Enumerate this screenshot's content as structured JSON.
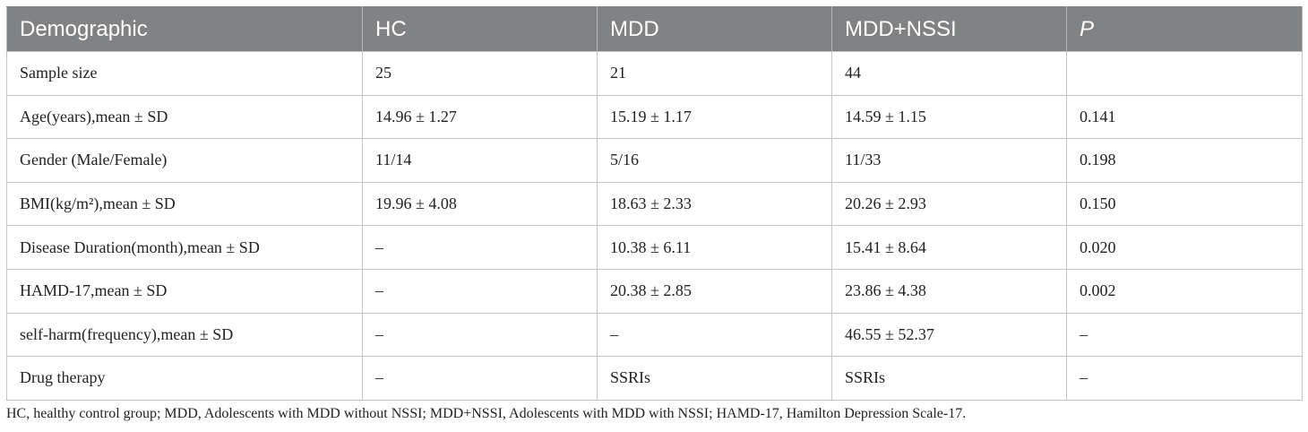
{
  "table": {
    "headers": [
      "Demographic",
      "HC",
      "MDD",
      "MDD+NSSI",
      "P"
    ],
    "rows": [
      [
        "Sample size",
        "25",
        "21",
        "44",
        ""
      ],
      [
        "Age(years),mean ± SD",
        "14.96 ± 1.27",
        "15.19 ± 1.17",
        "14.59 ± 1.15",
        "0.141"
      ],
      [
        "Gender (Male/Female)",
        "11/14",
        "5/16",
        "11/33",
        "0.198"
      ],
      [
        "BMI(kg/m²),mean ± SD",
        "19.96 ± 4.08",
        "18.63 ± 2.33",
        "20.26 ± 2.93",
        "0.150"
      ],
      [
        "Disease Duration(month),mean ± SD",
        "–",
        "10.38 ± 6.11",
        "15.41 ± 8.64",
        "0.020"
      ],
      [
        "HAMD-17,mean ± SD",
        "–",
        "20.38 ± 2.85",
        "23.86 ± 4.38",
        "0.002"
      ],
      [
        "self-harm(frequency),mean ± SD",
        "–",
        "–",
        "46.55 ± 52.37",
        "–"
      ],
      [
        "Drug therapy",
        "–",
        "SSRIs",
        "SSRIs",
        "–"
      ]
    ]
  },
  "footnote": "HC, healthy control group; MDD, Adolescents with MDD without NSSI; MDD+NSSI, Adolescents with MDD with NSSI; HAMD-17, Hamilton Depression Scale-17."
}
